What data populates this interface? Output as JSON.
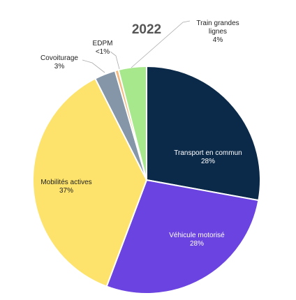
{
  "chart_data": {
    "type": "pie",
    "title": "2022",
    "categories": [
      "Transport en commun",
      "Véhicule motorisé",
      "Mobilités actives",
      "Covoiturage",
      "EDPM",
      "Train grandes lignes"
    ],
    "values": [
      28,
      28,
      37,
      3,
      0.5,
      4
    ],
    "value_labels": [
      "28%",
      "28%",
      "37%",
      "3%",
      "<1%",
      "4%"
    ],
    "colors": [
      "#0b2a4a",
      "#6a43e0",
      "#fde36b",
      "#8596a8",
      "#f5b97e",
      "#a8e88c"
    ]
  }
}
